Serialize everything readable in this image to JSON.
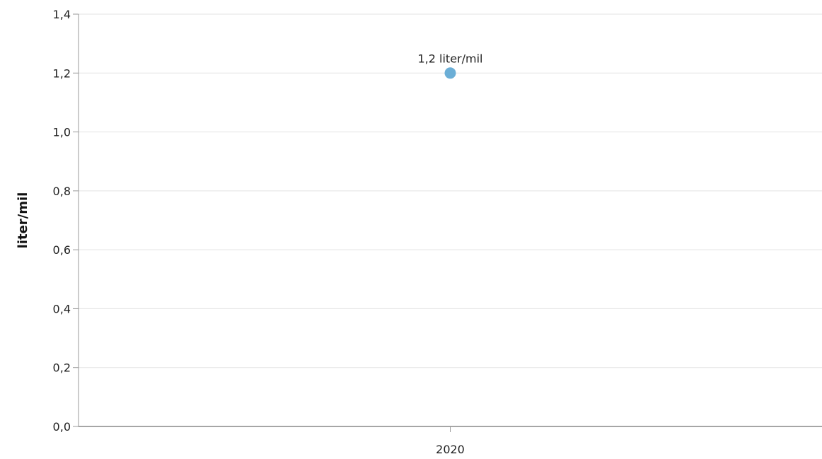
{
  "chart_data": {
    "type": "scatter",
    "categories": [
      "2020"
    ],
    "series": [
      {
        "values": [
          1.2
        ],
        "color": "#6baed6",
        "data_labels": [
          "1,2 liter/mil"
        ]
      }
    ],
    "ylabel": "liter/mil",
    "xlabel": "",
    "ylim": [
      0,
      1.4
    ],
    "yticks": [
      0,
      0.2,
      0.4,
      0.6,
      0.8,
      1.0,
      1.2,
      1.4
    ],
    "ytick_labels": [
      "0,0",
      "0,2",
      "0,4",
      "0,6",
      "0,8",
      "1,0",
      "1,2",
      "1,4"
    ],
    "grid": true,
    "legend": "none",
    "colors": {
      "grid": "#e3e3e3",
      "axis": "#999999",
      "xaxis": "#888888"
    }
  }
}
